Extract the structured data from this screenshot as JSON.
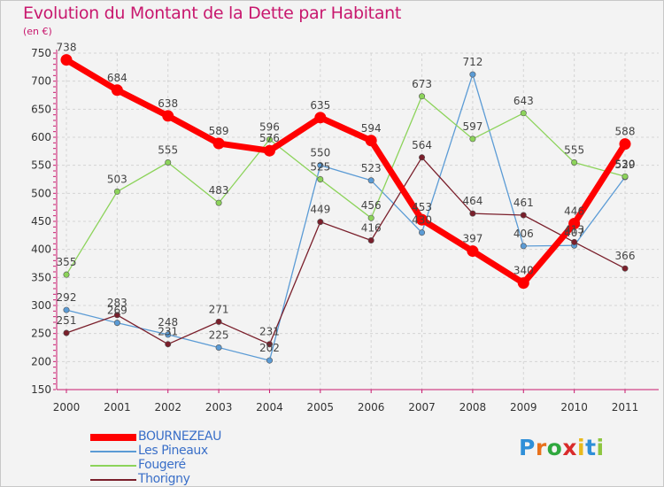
{
  "title": "Evolution du Montant de la Dette par Habitant",
  "unit": "(en €)",
  "logo": {
    "letters": [
      "P",
      "r",
      "o",
      "x",
      "i",
      "t",
      "i"
    ],
    "colors": [
      "#2f8fd8",
      "#e8711c",
      "#2fa83e",
      "#d92b2b",
      "#e8b91c",
      "#2f8fd8",
      "#8dc63f"
    ]
  },
  "colors": {
    "BOURNEZEAU": "#ff0000",
    "Les Pineaux": "#5b9bd5",
    "Fougeré": "#8cd35a",
    "Thorigny": "#7a1f2b"
  },
  "chart_data": {
    "type": "line",
    "x": [
      2000,
      2001,
      2002,
      2003,
      2004,
      2005,
      2006,
      2007,
      2008,
      2009,
      2010,
      2011
    ],
    "ylim": [
      150,
      750
    ],
    "yticks": [
      150,
      200,
      250,
      300,
      350,
      400,
      450,
      500,
      550,
      600,
      650,
      700,
      750
    ],
    "grid": true,
    "legend": "bottom-left",
    "series": [
      {
        "name": "BOURNEZEAU",
        "values": [
          738,
          684,
          638,
          589,
          576,
          635,
          594,
          453,
          397,
          340,
          446,
          588
        ]
      },
      {
        "name": "Les Pineaux",
        "values": [
          292,
          269,
          248,
          225,
          202,
          550,
          523,
          430,
          null,
          406,
          407,
          529
        ]
      },
      {
        "name": "Fougeré",
        "values": [
          355,
          503,
          555,
          483,
          596,
          525,
          456,
          673,
          597,
          643,
          555,
          530
        ]
      },
      {
        "name": "Thorigny",
        "values": [
          251,
          283,
          231,
          271,
          231,
          449,
          416,
          564,
          464,
          461,
          413,
          366
        ]
      }
    ],
    "extra_points": [
      {
        "series": "Les Pineaux",
        "x": 2008,
        "value": 712
      }
    ]
  }
}
